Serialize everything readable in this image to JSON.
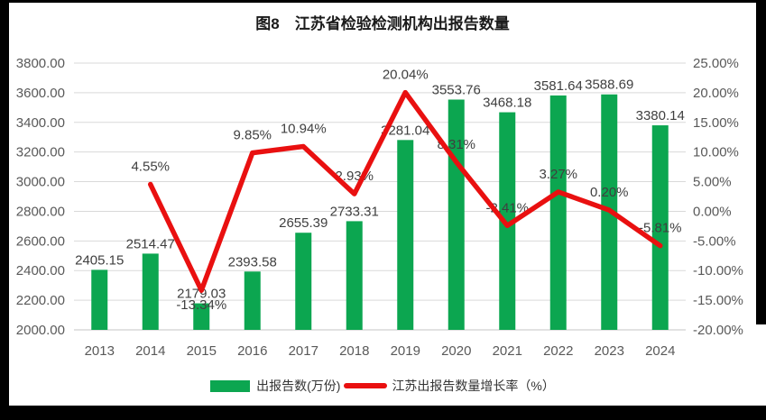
{
  "chart_data": {
    "type": "combo",
    "title": "图8　江苏省检验检测机构出报告数量",
    "categories": [
      "2013",
      "2014",
      "2015",
      "2016",
      "2017",
      "2018",
      "2019",
      "2020",
      "2021",
      "2022",
      "2023",
      "2024"
    ],
    "series": [
      {
        "name": "出报告数(万份)",
        "type": "bar",
        "axis": "left",
        "color": "#0ca650",
        "values": [
          2405.15,
          2514.47,
          2179.03,
          2393.58,
          2655.39,
          2733.31,
          3281.04,
          3553.76,
          3468.18,
          3581.64,
          3588.69,
          3380.14
        ],
        "data_labels": [
          "2405.15",
          "2514.47",
          "2179.03",
          "2393.58",
          "2655.39",
          "2733.31",
          "3281.04",
          "3553.76",
          "3468.18",
          "3581.64",
          "3588.69",
          "3380.14"
        ]
      },
      {
        "name": "江苏出报告数量增长率（%）",
        "type": "line",
        "axis": "right",
        "color": "#e91010",
        "values": [
          null,
          4.55,
          -13.34,
          9.85,
          10.94,
          2.93,
          20.04,
          8.31,
          -2.41,
          3.27,
          0.2,
          -5.81
        ],
        "data_labels": [
          null,
          "4.55%",
          "-13.34%",
          "9.85%",
          "10.94%",
          "2.93%",
          "20.04%",
          "8.31%",
          "-2.41%",
          "3.27%",
          "0.20%",
          "-5.81%"
        ]
      }
    ],
    "left_axis": {
      "min": 2000,
      "max": 3800,
      "step": 200,
      "tick_labels": [
        "2000.00",
        "2200.00",
        "2400.00",
        "2600.00",
        "2800.00",
        "3000.00",
        "3200.00",
        "3400.00",
        "3600.00",
        "3800.00"
      ]
    },
    "right_axis": {
      "min": -20,
      "max": 25,
      "step": 5,
      "tick_labels": [
        "-20.00%",
        "-15.00%",
        "-10.00%",
        "-5.00%",
        "0.00%",
        "5.00%",
        "10.00%",
        "15.00%",
        "20.00%",
        "25.00%"
      ]
    },
    "grid": true,
    "legend_position": "bottom",
    "colors": {
      "bar": "#0ca650",
      "line": "#e91010",
      "grid": "#d9d9d9",
      "axis_text": "#595959",
      "data_label_text": "#3f3f3f",
      "title_text": "#1a1a1a",
      "page_bg": "#ffffff",
      "frame_bg": "#000000"
    }
  }
}
